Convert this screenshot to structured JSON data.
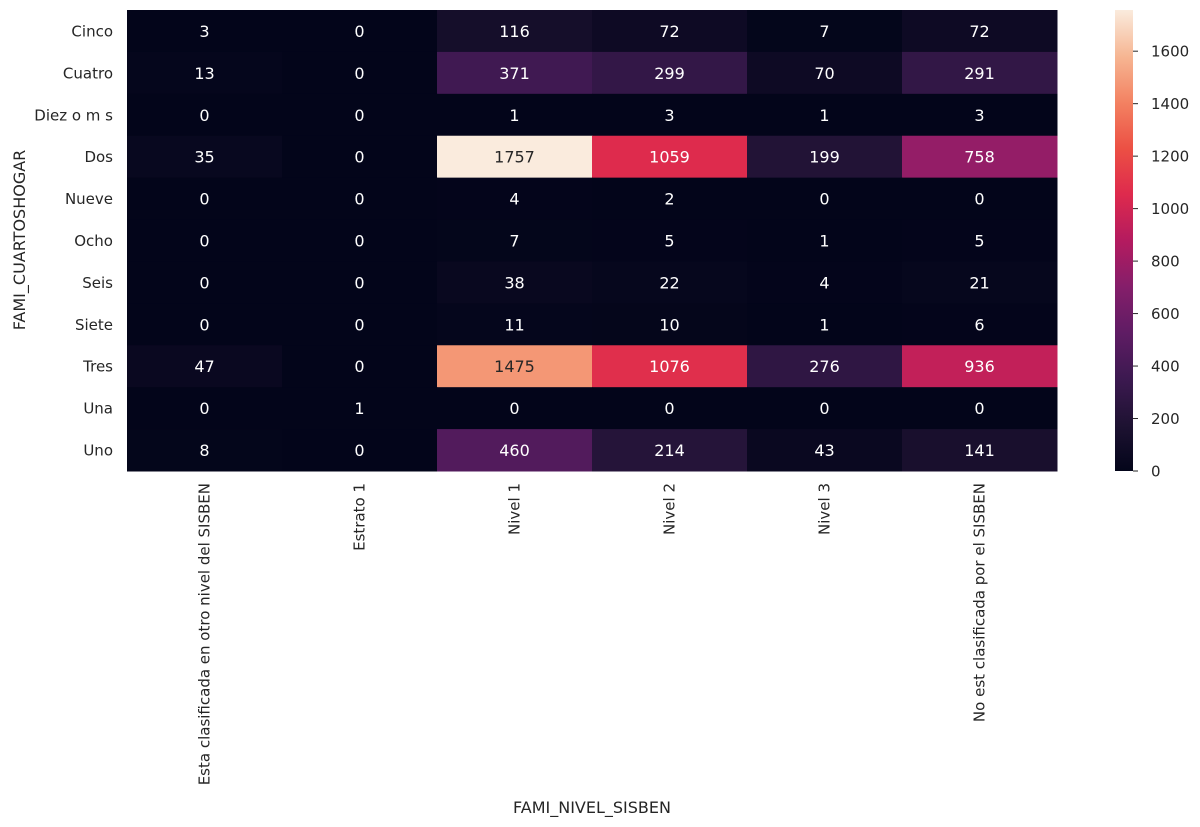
{
  "chart_data": {
    "type": "heatmap",
    "xlabel": "FAMI_NIVEL_SISBEN",
    "ylabel": "FAMI_CUARTOSHOGAR",
    "x_categories": [
      "Esta clasificada en otro nivel del SISBEN",
      "Estrato 1",
      "Nivel 1",
      "Nivel 2",
      "Nivel 3",
      "No est  clasificada por el SISBEN"
    ],
    "y_categories": [
      "Cinco",
      "Cuatro",
      "Diez o m s",
      "Dos",
      "Nueve",
      "Ocho",
      "Seis",
      "Siete",
      "Tres",
      "Una",
      "Uno"
    ],
    "values": [
      [
        3,
        0,
        116,
        72,
        7,
        72
      ],
      [
        13,
        0,
        371,
        299,
        70,
        291
      ],
      [
        0,
        0,
        1,
        3,
        1,
        3
      ],
      [
        35,
        0,
        1757,
        1059,
        199,
        758
      ],
      [
        0,
        0,
        4,
        2,
        0,
        0
      ],
      [
        0,
        0,
        7,
        5,
        1,
        5
      ],
      [
        0,
        0,
        38,
        22,
        4,
        21
      ],
      [
        0,
        0,
        11,
        10,
        1,
        6
      ],
      [
        47,
        0,
        1475,
        1076,
        276,
        936
      ],
      [
        0,
        1,
        0,
        0,
        0,
        0
      ],
      [
        8,
        0,
        460,
        214,
        43,
        141
      ]
    ],
    "value_range": [
      0,
      1757
    ],
    "colormap": "rocket",
    "colorbar": {
      "ticks": [
        0,
        200,
        400,
        600,
        800,
        1000,
        1200,
        1400,
        1600
      ]
    },
    "annotations": "cell values shown",
    "grid": false,
    "legend": "colorbar right"
  }
}
